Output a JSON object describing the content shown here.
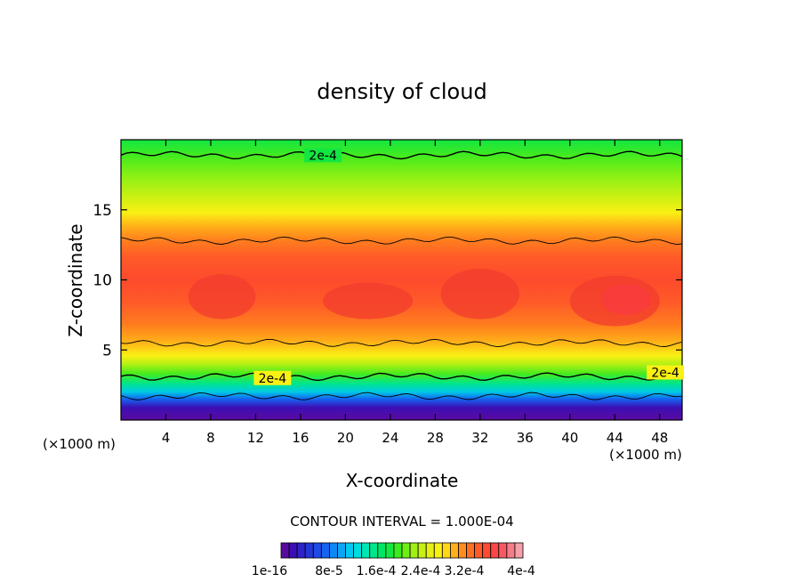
{
  "chart_data": {
    "type": "heatmap",
    "title": "density of cloud",
    "xlabel": "X-coordinate",
    "ylabel": "Z-coordinate",
    "x_unit_left": "(×1000 m)",
    "x_unit_right": "(×1000 m)",
    "xlim": [
      0,
      50
    ],
    "ylim": [
      0,
      20
    ],
    "x_ticks": [
      4,
      8,
      12,
      16,
      20,
      24,
      28,
      32,
      36,
      40,
      44,
      48
    ],
    "y_ticks": [
      5,
      10,
      15
    ],
    "contour_interval_text": "CONTOUR INTERVAL = 1.000E-04",
    "contour_labels": [
      {
        "text": "2e-4",
        "x": 18,
        "y": 18.9
      },
      {
        "text": "2e-4",
        "x": 13.5,
        "y": 3.0
      },
      {
        "text": "2e-4",
        "x": 48.5,
        "y": 3.4
      }
    ],
    "contour_levels_z": [
      18.9,
      12.8,
      5.5,
      3.1,
      1.7
    ],
    "colorbar": {
      "colors": [
        "#5a0aa0",
        "#3c0fb4",
        "#2d23c8",
        "#2337d7",
        "#1e4be6",
        "#1464f0",
        "#0f87f5",
        "#0aa5f5",
        "#05c8f0",
        "#00dcdc",
        "#00e6b4",
        "#00e68c",
        "#00e664",
        "#14e641",
        "#3ceb1e",
        "#6eef14",
        "#a0f014",
        "#c8f014",
        "#e6f014",
        "#faf014",
        "#ffd714",
        "#ffaf19",
        "#ff8c1e",
        "#ff6e23",
        "#ff5a28",
        "#ff4b32",
        "#fa4646",
        "#f55a64",
        "#f57d87",
        "#f5a0aa"
      ],
      "labels": [
        "1e-16",
        "8e-5",
        "1.6e-4",
        "2.4e-4",
        "3.2e-4",
        "4e-4"
      ]
    }
  }
}
